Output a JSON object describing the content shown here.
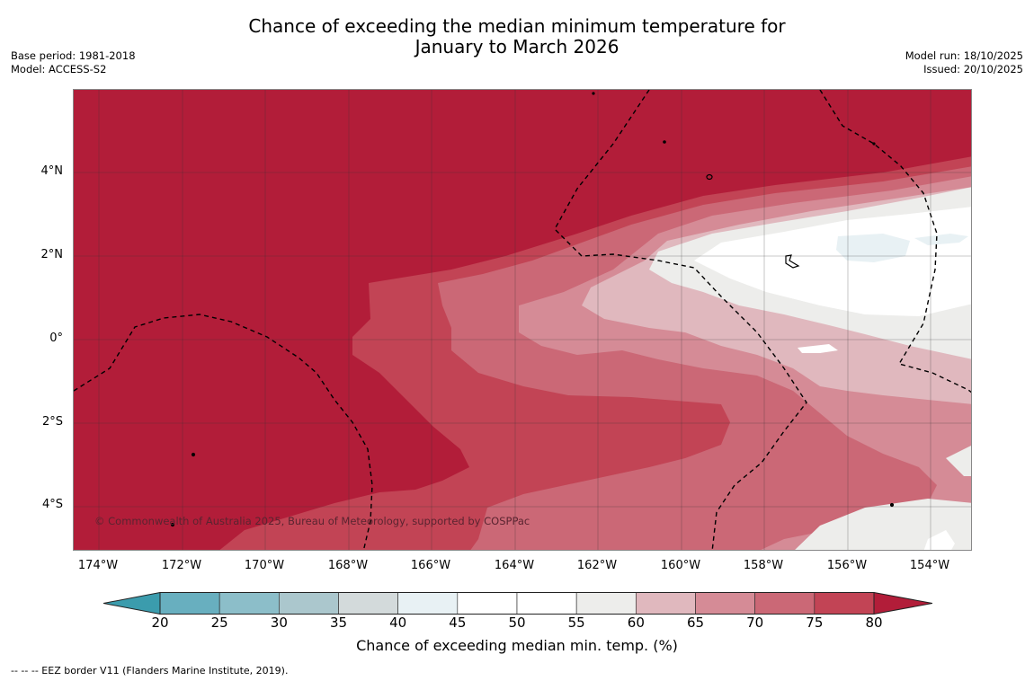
{
  "header": {
    "title_line1": "Chance of exceeding the median minimum temperature for",
    "title_line2": "January to March 2026",
    "base_period": "Base period: 1981-2018",
    "model": "Model: ACCESS-S2",
    "model_run": "Model run: 18/10/2025",
    "issued": "Issued: 20/10/2025"
  },
  "map": {
    "lat_labels": [
      "4°N",
      "2°N",
      "0°",
      "2°S",
      "4°S"
    ],
    "lon_labels": [
      "174°W",
      "172°W",
      "170°W",
      "168°W",
      "166°W",
      "164°W",
      "162°W",
      "160°W",
      "158°W",
      "156°W",
      "154°W"
    ],
    "credit": "© Commonwealth of Australia 2025, Bureau of Meteorology, supported by COSPPac",
    "colors": {
      "80plus": "#b21d39",
      "75_80": "#c24455",
      "70_75": "#cb6876",
      "65_70": "#d58b96",
      "60_65": "#e0b8be",
      "55_60": "#ededeb",
      "45_55": "#ffffff",
      "40_45": "#e8f1f4"
    }
  },
  "colorbar": {
    "label": "Chance of exceeding median min. temp. (%)",
    "ticks": [
      "20",
      "25",
      "30",
      "35",
      "40",
      "45",
      "50",
      "55",
      "60",
      "65",
      "70",
      "75",
      "80"
    ],
    "colors": [
      "#3b9cad",
      "#68afbf",
      "#8cbec9",
      "#abc7cd",
      "#d3dadb",
      "#e8f1f4",
      "#ffffff",
      "#ffffff",
      "#ededeb",
      "#e0b8be",
      "#d58b96",
      "#cb6876",
      "#c24455",
      "#b21d39"
    ]
  },
  "footnote": "--  --  -- EEZ border V11 (Flanders Marine Institute, 2019)."
}
